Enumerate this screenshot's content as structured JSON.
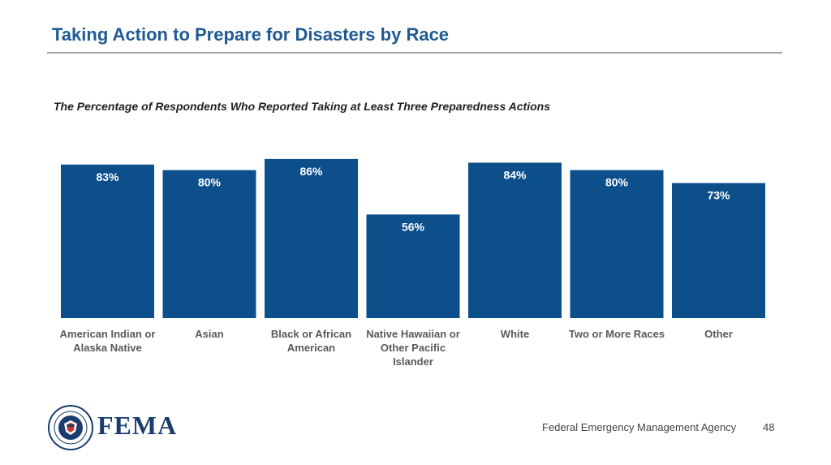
{
  "slide": {
    "title": "Taking Action to Prepare for Disasters by Race",
    "footer_agency": "Federal Emergency Management Agency",
    "page_number": "48",
    "logo_text": "FEMA"
  },
  "colors": {
    "title": "#1f5a94",
    "bar": "#0d4f8b",
    "rule": "#a6a6a6",
    "label": "#595959"
  },
  "chart_data": {
    "type": "bar",
    "title": "The Percentage of Respondents Who Reported Taking at Least Three Preparedness Actions",
    "categories": [
      "American Indian or Alaska Native",
      "Asian",
      "Black or African American",
      "Native Hawaiian or Other Pacific Islander",
      "White",
      "Two or More Races",
      "Other"
    ],
    "category_lines": [
      [
        "American Indian or",
        "Alaska Native"
      ],
      [
        "Asian"
      ],
      [
        "Black or African",
        "American"
      ],
      [
        "Native Hawaiian or",
        "Other Pacific",
        "Islander"
      ],
      [
        "White"
      ],
      [
        "Two or More Races"
      ],
      [
        "Other"
      ]
    ],
    "values": [
      83,
      80,
      86,
      56,
      84,
      80,
      73
    ],
    "value_labels": [
      "83%",
      "80%",
      "86%",
      "56%",
      "84%",
      "80%",
      "73%"
    ],
    "xlabel": "",
    "ylabel": "",
    "ylim": [
      0,
      100
    ],
    "grid": false,
    "legend": "none"
  }
}
